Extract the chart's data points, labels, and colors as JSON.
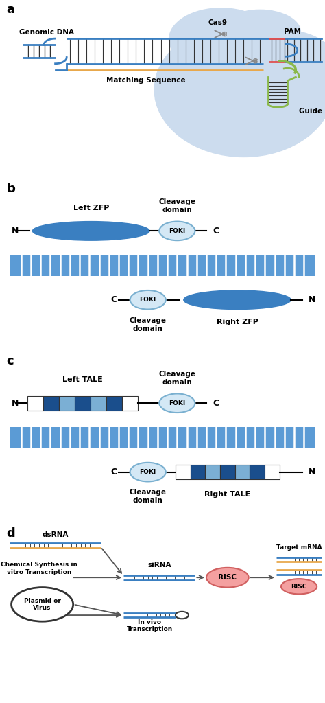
{
  "panel_a": {
    "label": "a",
    "bg_blob_color": "#ccdcee",
    "dna_blue": "#3a7fc1",
    "dna_orange": "#e8a84c",
    "dna_red": "#e05050",
    "dna_green": "#8ab84a",
    "cas9_label": "Cas9",
    "pam_label": "PAM",
    "genomic_dna_label": "Genomic DNA",
    "matching_seq_label": "Matching Sequence",
    "guide_rna_label": "Guide RNA"
  },
  "panel_b": {
    "label": "b",
    "zfp_color": "#3a7fc1",
    "foki_color": "#d4e8f5",
    "foki_border": "#7ab0d0",
    "dna_color": "#5b9bd5",
    "left_zfp_label": "Left ZFP",
    "right_zfp_label": "Right ZFP",
    "cleavage_label": "Cleavage\ndomain",
    "foki_label": "FOKI"
  },
  "panel_c": {
    "label": "c",
    "tale_colors_left": [
      "#ffffff",
      "#1a4e8c",
      "#7bafd4",
      "#1a4e8c",
      "#7bafd4",
      "#1a4e8c",
      "#ffffff"
    ],
    "tale_colors_right": [
      "#ffffff",
      "#1a4e8c",
      "#7bafd4",
      "#1a4e8c",
      "#7bafd4",
      "#1a4e8c",
      "#ffffff"
    ],
    "foki_color": "#d4e8f5",
    "foki_border": "#7ab0d0",
    "dna_color": "#5b9bd5",
    "left_tale_label": "Left TALE",
    "right_tale_label": "Right TALE",
    "cleavage_label": "Cleavage\ndomain",
    "foki_label": "FOKI"
  },
  "panel_d": {
    "label": "d",
    "dsrna_label": "dsRNA",
    "sirna_label": "siRNA",
    "risc_label": "RISC",
    "target_mrna_label": "Target mRNA",
    "chem_synth_label": "Chemical Synthesis in\nvitro Transcription",
    "plasmid_label": "Plasmid or\nVirus",
    "in_vivo_label": "In vivo\nTranscription",
    "risc_color": "#f4a0a0",
    "risc_border": "#d06060",
    "dna_blue": "#3a7fc1",
    "dna_orange": "#e8a84c",
    "arrow_color": "#555555"
  }
}
